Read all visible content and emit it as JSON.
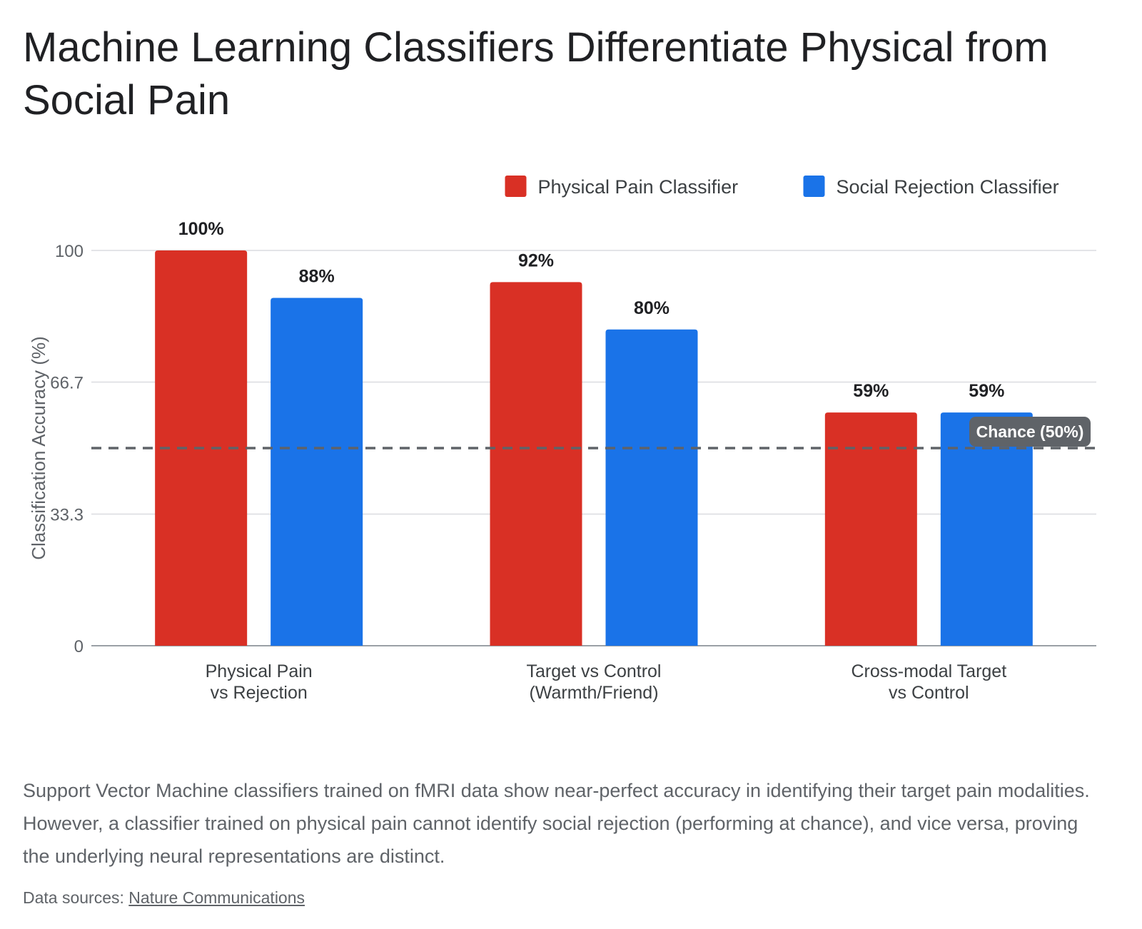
{
  "title": "Machine Learning Classifiers Differentiate Physical from Social Pain",
  "description": "Support Vector Machine classifiers trained on fMRI data show near-perfect accuracy in identifying their target pain modalities. However, a classifier trained on physical pain cannot identify social rejection (performing at chance), and vice versa, proving the underlying neural representations are distinct.",
  "sources": {
    "prefix": "Data sources: ",
    "link_text": "Nature Communications"
  },
  "chart_data": {
    "type": "bar",
    "title": "Machine Learning Classifiers Differentiate Physical from Social Pain",
    "ylabel": "Classification Accuracy (%)",
    "xlabel": "",
    "ylim": [
      0,
      100
    ],
    "yticks": [
      0,
      33.3,
      66.7,
      100
    ],
    "ytick_labels": [
      "0",
      "33.3",
      "66.7",
      "100"
    ],
    "grid": true,
    "legend_position": "top-right",
    "categories": [
      [
        "Physical Pain",
        "vs Rejection"
      ],
      [
        "Target vs Control",
        "(Warmth/Friend)"
      ],
      [
        "Cross-modal Target",
        "vs Control"
      ]
    ],
    "series": [
      {
        "name": "Physical Pain Classifier",
        "color": "#d93025",
        "values": [
          100,
          92,
          59
        ],
        "labels": [
          "100%",
          "92%",
          "59%"
        ]
      },
      {
        "name": "Social Rejection Classifier",
        "color": "#1a73e8",
        "values": [
          88,
          80,
          59
        ],
        "labels": [
          "88%",
          "80%",
          "59%"
        ]
      }
    ],
    "reference_line": {
      "value": 50,
      "label": "Chance (50%)",
      "style": "dashed",
      "color": "#5f6368"
    }
  }
}
